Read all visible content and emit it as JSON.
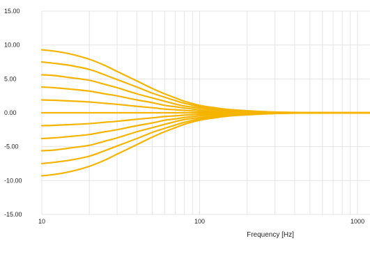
{
  "chart_data": {
    "type": "line",
    "xlabel": "Frequency [Hz]",
    "ylabel": "",
    "x_scale": "log",
    "xlim": [
      10,
      1200
    ],
    "ylim": [
      -15,
      15
    ],
    "y_ticks": [
      -15,
      -10,
      -5,
      0,
      5,
      10,
      15
    ],
    "y_tick_labels": [
      "-15.00",
      "-10.00",
      "-5.00",
      "0.00",
      "5.00",
      "10.00",
      "15.00"
    ],
    "x_ticks": [
      10,
      100,
      1000
    ],
    "x_tick_labels": [
      "10",
      "100",
      "1000"
    ],
    "grid": true,
    "line_color": "#f5b400",
    "grid_color": "#e4e4e4",
    "x": [
      10,
      12,
      15,
      20,
      25,
      30,
      40,
      50,
      60,
      70,
      80,
      100,
      120,
      150,
      200,
      300,
      400,
      500,
      700,
      1000,
      1200
    ],
    "series": [
      {
        "values": [
          9.3,
          9.1,
          8.7,
          7.9,
          7.0,
          6.1,
          4.7,
          3.6,
          2.8,
          2.2,
          1.7,
          1.1,
          0.8,
          0.5,
          0.3,
          0.1,
          0.05,
          0.03,
          0.02,
          0.01,
          0.0
        ]
      },
      {
        "values": [
          7.5,
          7.3,
          7.0,
          6.4,
          5.6,
          4.9,
          3.8,
          2.9,
          2.3,
          1.8,
          1.4,
          0.9,
          0.6,
          0.4,
          0.2,
          0.1,
          0.04,
          0.02,
          0.01,
          0.0,
          0.0
        ]
      },
      {
        "values": [
          5.6,
          5.5,
          5.2,
          4.8,
          4.2,
          3.7,
          2.8,
          2.2,
          1.7,
          1.3,
          1.0,
          0.7,
          0.5,
          0.3,
          0.15,
          0.06,
          0.03,
          0.02,
          0.01,
          0.0,
          0.0
        ]
      },
      {
        "values": [
          3.8,
          3.7,
          3.5,
          3.2,
          2.8,
          2.5,
          1.9,
          1.5,
          1.1,
          0.9,
          0.7,
          0.45,
          0.3,
          0.2,
          0.1,
          0.04,
          0.02,
          0.01,
          0.0,
          0.0,
          0.0
        ]
      },
      {
        "values": [
          1.9,
          1.85,
          1.75,
          1.6,
          1.4,
          1.25,
          0.95,
          0.75,
          0.55,
          0.45,
          0.35,
          0.22,
          0.15,
          0.1,
          0.05,
          0.02,
          0.01,
          0.0,
          0.0,
          0.0,
          0.0
        ]
      },
      {
        "values": [
          0,
          0,
          0,
          0,
          0,
          0,
          0,
          0,
          0,
          0,
          0,
          0,
          0,
          0,
          0,
          0,
          0,
          0,
          0,
          0,
          0
        ]
      },
      {
        "values": [
          -1.9,
          -1.85,
          -1.75,
          -1.6,
          -1.4,
          -1.25,
          -0.95,
          -0.75,
          -0.55,
          -0.45,
          -0.35,
          -0.22,
          -0.15,
          -0.1,
          -0.05,
          -0.02,
          -0.01,
          0.0,
          0.0,
          0.0,
          0.0
        ]
      },
      {
        "values": [
          -3.8,
          -3.7,
          -3.5,
          -3.2,
          -2.8,
          -2.5,
          -1.9,
          -1.5,
          -1.1,
          -0.9,
          -0.7,
          -0.45,
          -0.3,
          -0.2,
          -0.1,
          -0.04,
          -0.02,
          -0.01,
          0.0,
          0.0,
          0.0
        ]
      },
      {
        "values": [
          -5.6,
          -5.5,
          -5.2,
          -4.8,
          -4.2,
          -3.7,
          -2.8,
          -2.2,
          -1.7,
          -1.3,
          -1.0,
          -0.7,
          -0.5,
          -0.3,
          -0.15,
          -0.06,
          -0.03,
          -0.02,
          -0.01,
          0.0,
          0.0
        ]
      },
      {
        "values": [
          -7.5,
          -7.3,
          -7.0,
          -6.4,
          -5.6,
          -4.9,
          -3.8,
          -2.9,
          -2.3,
          -1.8,
          -1.4,
          -0.9,
          -0.6,
          -0.4,
          -0.2,
          -0.1,
          -0.04,
          -0.02,
          -0.01,
          0.0,
          0.0
        ]
      },
      {
        "values": [
          -9.3,
          -9.1,
          -8.7,
          -7.9,
          -7.0,
          -6.1,
          -4.7,
          -3.6,
          -2.8,
          -2.2,
          -1.7,
          -1.1,
          -0.8,
          -0.5,
          -0.3,
          -0.1,
          -0.05,
          -0.03,
          -0.02,
          -0.01,
          0.0
        ]
      }
    ]
  }
}
